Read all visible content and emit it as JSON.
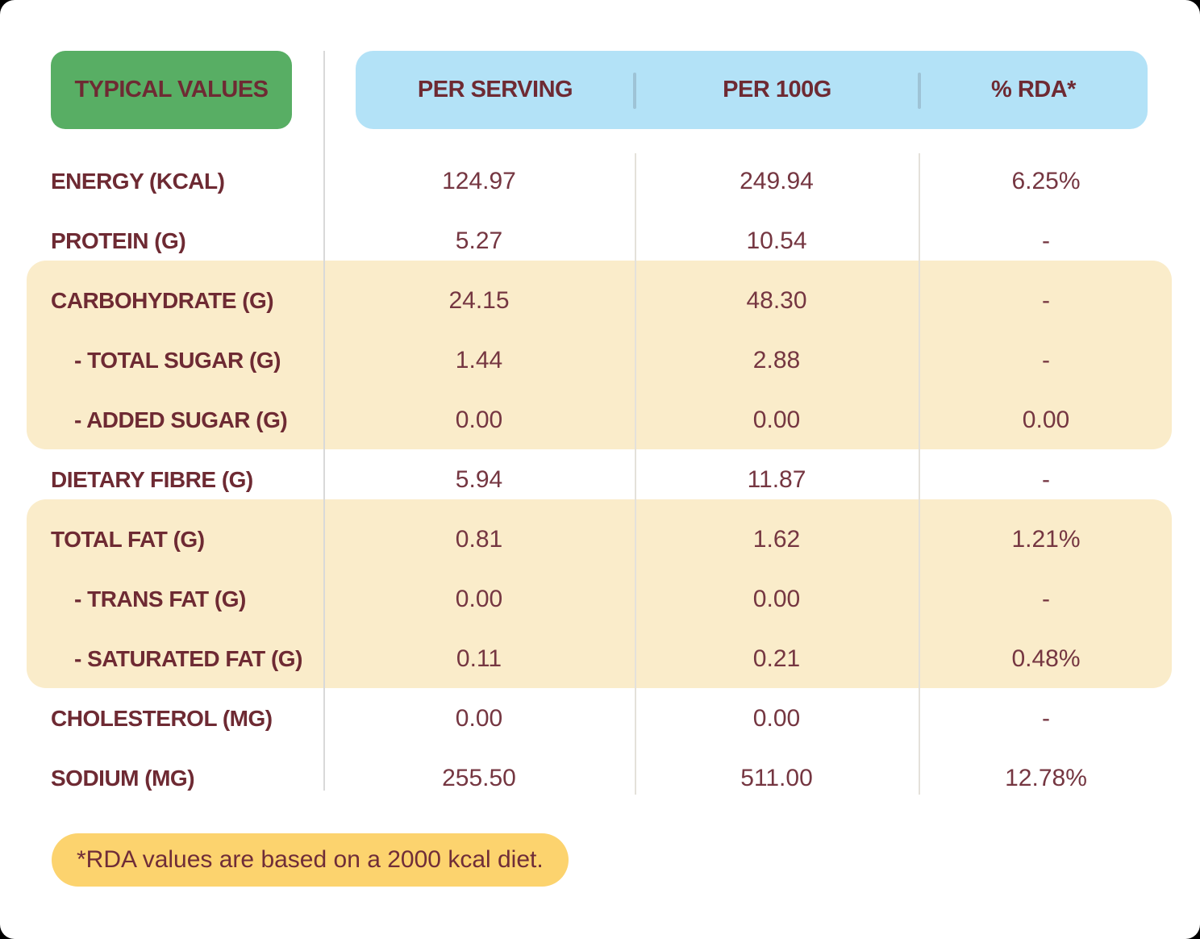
{
  "header": {
    "corner_label": "TYPICAL VALUES",
    "columns": [
      "PER SERVING",
      "PER 100G",
      "% RDA*"
    ]
  },
  "rows": [
    {
      "label": "ENERGY (KCAL)",
      "indent": false,
      "highlight": false,
      "per_serving": "124.97",
      "per_100g": "249.94",
      "rda": "6.25%"
    },
    {
      "label": "PROTEIN (G)",
      "indent": false,
      "highlight": false,
      "per_serving": "5.27",
      "per_100g": "10.54",
      "rda": "-"
    },
    {
      "label": "CARBOHYDRATE (G)",
      "indent": false,
      "highlight": true,
      "per_serving": "24.15",
      "per_100g": "48.30",
      "rda": "-"
    },
    {
      "label": "- TOTAL SUGAR (G)",
      "indent": true,
      "highlight": true,
      "per_serving": "1.44",
      "per_100g": "2.88",
      "rda": "-"
    },
    {
      "label": "- ADDED SUGAR (G)",
      "indent": true,
      "highlight": true,
      "per_serving": "0.00",
      "per_100g": "0.00",
      "rda": "0.00"
    },
    {
      "label": "DIETARY FIBRE (G)",
      "indent": false,
      "highlight": false,
      "per_serving": "5.94",
      "per_100g": "11.87",
      "rda": "-"
    },
    {
      "label": "TOTAL FAT (G)",
      "indent": false,
      "highlight": true,
      "per_serving": "0.81",
      "per_100g": "1.62",
      "rda": "1.21%"
    },
    {
      "label": "- TRANS FAT (G)",
      "indent": true,
      "highlight": true,
      "per_serving": "0.00",
      "per_100g": "0.00",
      "rda": "-"
    },
    {
      "label": "- SATURATED FAT (G)",
      "indent": true,
      "highlight": true,
      "per_serving": "0.11",
      "per_100g": "0.21",
      "rda": "0.48%"
    },
    {
      "label": "CHOLESTEROL (MG)",
      "indent": false,
      "highlight": false,
      "per_serving": "0.00",
      "per_100g": "0.00",
      "rda": "-"
    },
    {
      "label": "SODIUM (MG)",
      "indent": false,
      "highlight": false,
      "per_serving": "255.50",
      "per_100g": "511.00",
      "rda": "12.78%"
    }
  ],
  "footnote": "*RDA values are based on a 2000 kcal diet.",
  "colors": {
    "corner_chip_green": "#58AE64",
    "header_blue": "#B3E2F7",
    "highlight_cream": "#FAECCA",
    "footnote_yellow": "#FCD36E",
    "label_maroon": "#6E2A33",
    "value_maroon": "#753641",
    "card_white": "#FFFFFF"
  }
}
